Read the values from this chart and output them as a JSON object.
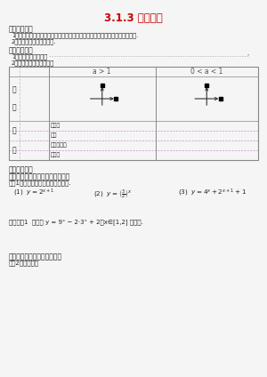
{
  "title": "3.1.3 指数函数",
  "title_color": "#cc0000",
  "bg_color": "#f5f5f5",
  "line1a": "一、学习目标",
  "line1b": "1．了解指数函数的概念，会描述指数函数的图象及由图象和由指数函数的性质.",
  "line1c": "2．指数函数的图象和性质.",
  "line2a": "二、温故习新",
  "line2b": "1．指数函数的定义：",
  "line2c": "2．指数函数的图象和性质",
  "col2_header": "a > 1",
  "col3_header": "0 < a < 1",
  "row_tu": "图",
  "row_xiang": "象",
  "row_xing": "性",
  "row_zhi": "质",
  "prop1": "定义域",
  "prop2": "值域",
  "prop3": "图象过定",
  "prop3b": "点",
  "prop4": "单调性",
  "sec3a": "三、模型拓展",
  "type1": "题型一：指数函数的定义域和值域",
  "ex1intro": "【例1】求下列函数的定义域和值域.",
  "variant1": "变式训练1  求函数 y = 9ˣ − 2·3ˣ + 2，x∈[1,2] 的值域.",
  "type2": "题型二：指数函数的大小比较",
  "ex2intro": "【例2】比较大小"
}
